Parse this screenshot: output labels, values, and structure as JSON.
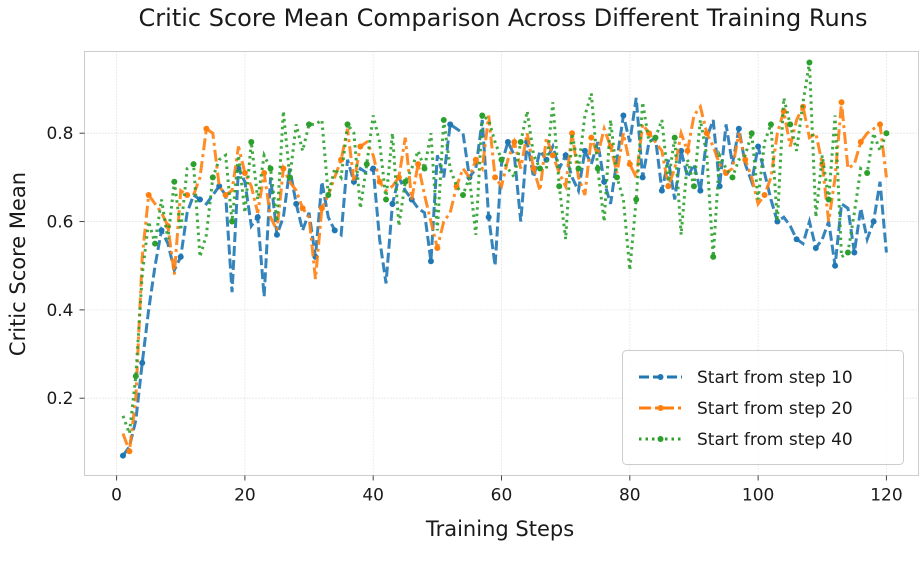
{
  "chart_data": {
    "type": "line",
    "title": "Critic Score Mean Comparison Across Different Training Runs",
    "xlabel": "Training Steps",
    "ylabel": "Critic Score Mean",
    "xlim": [
      -5,
      125
    ],
    "ylim": [
      0.025,
      0.985
    ],
    "xticks": [
      0,
      20,
      40,
      60,
      80,
      100,
      120
    ],
    "yticks": [
      0.2,
      0.4,
      0.6,
      0.8
    ],
    "xtick_labels": [
      "0",
      "20",
      "40",
      "60",
      "80",
      "100",
      "120"
    ],
    "ytick_labels": [
      "0.2",
      "0.4",
      "0.6",
      "0.8"
    ],
    "grid": true,
    "legend_position": "lower-right",
    "x": [
      1,
      2,
      3,
      4,
      5,
      6,
      7,
      8,
      9,
      10,
      11,
      12,
      13,
      14,
      15,
      16,
      17,
      18,
      19,
      20,
      21,
      22,
      23,
      24,
      25,
      26,
      27,
      28,
      29,
      30,
      31,
      32,
      33,
      34,
      35,
      36,
      37,
      38,
      39,
      40,
      41,
      42,
      43,
      44,
      45,
      46,
      47,
      48,
      49,
      50,
      51,
      52,
      53,
      54,
      55,
      56,
      57,
      58,
      59,
      60,
      61,
      62,
      63,
      64,
      65,
      66,
      67,
      68,
      69,
      70,
      71,
      72,
      73,
      74,
      75,
      76,
      77,
      78,
      79,
      80,
      81,
      82,
      83,
      84,
      85,
      86,
      87,
      88,
      89,
      90,
      91,
      92,
      93,
      94,
      95,
      96,
      97,
      98,
      99,
      100,
      101,
      102,
      103,
      104,
      105,
      106,
      107,
      108,
      109,
      110,
      111,
      112,
      113,
      114,
      115,
      116,
      117,
      118,
      119,
      120
    ],
    "series": [
      {
        "name": "Start from step 10",
        "color": "#1f77b4",
        "style": "dashed",
        "values": [
          0.07,
          0.09,
          0.15,
          0.28,
          0.4,
          0.5,
          0.58,
          0.55,
          0.49,
          0.52,
          0.62,
          0.66,
          0.65,
          0.64,
          0.66,
          0.68,
          0.66,
          0.44,
          0.72,
          0.69,
          0.59,
          0.61,
          0.43,
          0.7,
          0.57,
          0.61,
          0.72,
          0.64,
          0.58,
          0.62,
          0.52,
          0.69,
          0.61,
          0.58,
          0.57,
          0.74,
          0.69,
          0.72,
          0.71,
          0.72,
          0.56,
          0.46,
          0.64,
          0.7,
          0.67,
          0.65,
          0.63,
          0.62,
          0.51,
          0.75,
          0.7,
          0.82,
          0.81,
          0.8,
          0.7,
          0.72,
          0.83,
          0.61,
          0.5,
          0.73,
          0.78,
          0.75,
          0.6,
          0.78,
          0.7,
          0.76,
          0.74,
          0.77,
          0.72,
          0.75,
          0.7,
          0.67,
          0.76,
          0.73,
          0.78,
          0.69,
          0.64,
          0.74,
          0.84,
          0.78,
          0.88,
          0.7,
          0.78,
          0.79,
          0.67,
          0.74,
          0.65,
          0.76,
          0.7,
          0.73,
          0.67,
          0.79,
          0.83,
          0.68,
          0.82,
          0.73,
          0.81,
          0.73,
          0.69,
          0.77,
          0.71,
          0.65,
          0.6,
          0.61,
          0.59,
          0.56,
          0.55,
          0.6,
          0.54,
          0.56,
          0.6,
          0.5,
          0.64,
          0.63,
          0.53,
          0.63,
          0.56,
          0.6,
          0.69,
          0.53
        ]
      },
      {
        "name": "Start from step 20",
        "color": "#ff7f0e",
        "style": "dashdot",
        "values": [
          0.12,
          0.08,
          0.2,
          0.52,
          0.66,
          0.64,
          0.62,
          0.59,
          0.48,
          0.67,
          0.66,
          0.66,
          0.7,
          0.81,
          0.8,
          0.68,
          0.66,
          0.67,
          0.77,
          0.71,
          0.68,
          0.62,
          0.71,
          0.61,
          0.58,
          0.72,
          0.69,
          0.67,
          0.63,
          0.61,
          0.47,
          0.63,
          0.66,
          0.7,
          0.74,
          0.81,
          0.69,
          0.77,
          0.78,
          0.75,
          0.69,
          0.67,
          0.68,
          0.7,
          0.79,
          0.65,
          0.73,
          0.66,
          0.6,
          0.54,
          0.6,
          0.62,
          0.68,
          0.72,
          0.7,
          0.74,
          0.72,
          0.84,
          0.7,
          0.68,
          0.74,
          0.78,
          0.72,
          0.8,
          0.72,
          0.67,
          0.79,
          0.75,
          0.71,
          0.68,
          0.8,
          0.7,
          0.66,
          0.79,
          0.75,
          0.81,
          0.77,
          0.71,
          0.8,
          0.73,
          0.7,
          0.82,
          0.8,
          0.78,
          0.76,
          0.68,
          0.72,
          0.8,
          0.76,
          0.84,
          0.86,
          0.8,
          0.77,
          0.73,
          0.71,
          0.72,
          0.8,
          0.74,
          0.7,
          0.64,
          0.66,
          0.7,
          0.8,
          0.85,
          0.77,
          0.83,
          0.86,
          0.79,
          0.8,
          0.73,
          0.6,
          0.7,
          0.87,
          0.72,
          0.73,
          0.78,
          0.8,
          0.81,
          0.82,
          0.7
        ]
      },
      {
        "name": "Start from step 40",
        "color": "#2ca02c",
        "style": "dotted",
        "values": [
          0.16,
          0.12,
          0.25,
          0.48,
          0.6,
          0.55,
          0.65,
          0.56,
          0.69,
          0.58,
          0.72,
          0.73,
          0.52,
          0.57,
          0.7,
          0.74,
          0.75,
          0.6,
          0.75,
          0.62,
          0.78,
          0.65,
          0.75,
          0.72,
          0.6,
          0.85,
          0.7,
          0.82,
          0.76,
          0.82,
          0.82,
          0.83,
          0.66,
          0.72,
          0.7,
          0.82,
          0.8,
          0.63,
          0.73,
          0.84,
          0.78,
          0.65,
          0.8,
          0.59,
          0.69,
          0.72,
          0.76,
          0.72,
          0.8,
          0.58,
          0.83,
          0.72,
          0.68,
          0.66,
          0.7,
          0.57,
          0.84,
          0.83,
          0.78,
          0.74,
          0.72,
          0.7,
          0.78,
          0.85,
          0.75,
          0.72,
          0.72,
          0.87,
          0.68,
          0.56,
          0.8,
          0.72,
          0.84,
          0.89,
          0.72,
          0.6,
          0.83,
          0.7,
          0.65,
          0.49,
          0.65,
          0.87,
          0.78,
          0.79,
          0.83,
          0.69,
          0.79,
          0.57,
          0.74,
          0.68,
          0.83,
          0.75,
          0.52,
          0.75,
          0.72,
          0.7,
          0.74,
          0.75,
          0.8,
          0.65,
          0.78,
          0.82,
          0.6,
          0.88,
          0.82,
          0.76,
          0.87,
          0.96,
          0.61,
          0.75,
          0.65,
          0.84,
          0.52,
          0.53,
          0.62,
          0.72,
          0.71,
          0.8,
          0.76,
          0.8
        ]
      }
    ]
  }
}
